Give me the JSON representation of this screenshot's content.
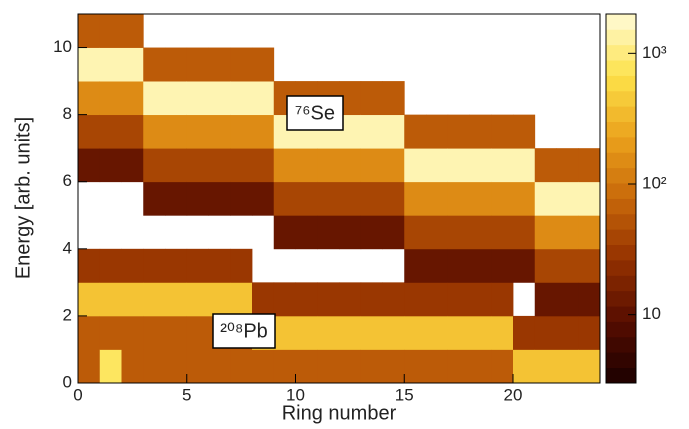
{
  "chart_data": {
    "type": "heatmap",
    "xlabel": "Ring number",
    "ylabel": "Energy [arb. units]",
    "xbins": [
      0,
      1,
      2,
      3,
      4,
      5,
      6,
      7,
      8,
      9,
      10,
      11,
      12,
      13,
      14,
      15,
      16,
      17,
      18,
      19,
      20,
      21,
      22,
      23,
      24
    ],
    "ybins": [
      0,
      1,
      2,
      3,
      4,
      5,
      6,
      7,
      8,
      9,
      10,
      11
    ],
    "z": [
      [
        60,
        60,
        400,
        30,
        0,
        0,
        12,
        40,
        150,
        1500,
        60
      ],
      [
        800,
        60,
        400,
        30,
        0,
        0,
        12,
        40,
        150,
        1500,
        60
      ],
      [
        60,
        60,
        400,
        30,
        0,
        0,
        12,
        40,
        150,
        1500,
        60
      ],
      [
        60,
        60,
        400,
        30,
        0,
        12,
        40,
        150,
        1500,
        60,
        0
      ],
      [
        60,
        60,
        400,
        30,
        0,
        12,
        40,
        150,
        1500,
        60,
        0
      ],
      [
        60,
        60,
        400,
        30,
        0,
        12,
        40,
        150,
        1500,
        60,
        0
      ],
      [
        60,
        60,
        400,
        30,
        0,
        12,
        40,
        150,
        1500,
        60,
        0
      ],
      [
        60,
        60,
        400,
        30,
        0,
        12,
        40,
        150,
        1500,
        60,
        0
      ],
      [
        60,
        400,
        30,
        0,
        0,
        12,
        40,
        150,
        1500,
        60,
        0
      ],
      [
        60,
        400,
        30,
        0,
        12,
        40,
        150,
        1500,
        60,
        0,
        0
      ],
      [
        60,
        400,
        30,
        0,
        12,
        40,
        150,
        1500,
        60,
        0,
        0
      ],
      [
        60,
        400,
        30,
        0,
        12,
        40,
        150,
        1500,
        60,
        0,
        0
      ],
      [
        60,
        400,
        30,
        0,
        12,
        40,
        150,
        1500,
        60,
        0,
        0
      ],
      [
        60,
        400,
        30,
        0,
        12,
        40,
        150,
        1500,
        60,
        0,
        0
      ],
      [
        60,
        400,
        30,
        0,
        12,
        40,
        150,
        1500,
        60,
        0,
        0
      ],
      [
        60,
        400,
        30,
        12,
        40,
        150,
        1500,
        60,
        0,
        0,
        0
      ],
      [
        60,
        400,
        30,
        12,
        40,
        150,
        1500,
        60,
        0,
        0,
        0
      ],
      [
        60,
        400,
        30,
        12,
        40,
        150,
        1500,
        60,
        0,
        0,
        0
      ],
      [
        60,
        400,
        30,
        12,
        40,
        150,
        1500,
        60,
        0,
        0,
        0
      ],
      [
        60,
        400,
        30,
        12,
        40,
        150,
        1500,
        60,
        0,
        0,
        0
      ],
      [
        400,
        30,
        0,
        12,
        40,
        150,
        1500,
        60,
        0,
        0,
        0
      ],
      [
        400,
        30,
        12,
        40,
        150,
        1500,
        60,
        0,
        0,
        0,
        0
      ],
      [
        400,
        30,
        12,
        40,
        150,
        1500,
        60,
        0,
        0,
        0,
        0
      ],
      [
        400,
        30,
        12,
        40,
        150,
        1500,
        60,
        0,
        0,
        0,
        0
      ]
    ],
    "xlim": [
      0,
      24
    ],
    "xticks": [
      0,
      5,
      10,
      15,
      20
    ],
    "ylim": [
      0,
      11
    ],
    "yticks": [
      0,
      2,
      4,
      6,
      8,
      10
    ],
    "zlim": [
      3,
      2000
    ],
    "zscale": "log",
    "zticks": [
      10,
      {
        "value": 100,
        "label": "10²"
      },
      {
        "value": 1000,
        "label": "10³"
      }
    ],
    "colors": [
      "#1c0000",
      "#560c00",
      "#933000",
      "#c8680a",
      "#eba21c",
      "#fde24a",
      "#fffbd8"
    ],
    "annotations": [
      "⁷⁶Se",
      "²⁰⁸Pb"
    ]
  }
}
